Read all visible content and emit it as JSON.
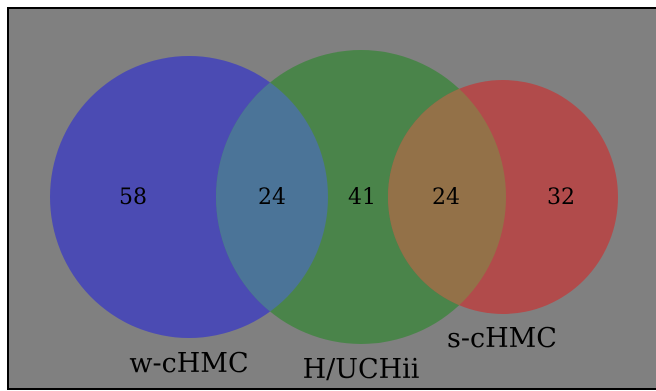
{
  "sets": [
    {
      "id": "A",
      "label": "w-cHMC",
      "color": "#4b4bb3"
    },
    {
      "id": "B",
      "label": "H/UCHii",
      "color": "#4a844a"
    },
    {
      "id": "C",
      "label": "s-cHMC",
      "color": "#b14b4b"
    }
  ],
  "regions": {
    "A_only": "58",
    "A_and_B": "24",
    "B_only": "41",
    "B_and_C": "24",
    "C_only": "32"
  },
  "colors": {
    "background": "#808080",
    "border": "#000000",
    "overlap_ab": "#4b7498",
    "overlap_bc": "#937148"
  }
}
